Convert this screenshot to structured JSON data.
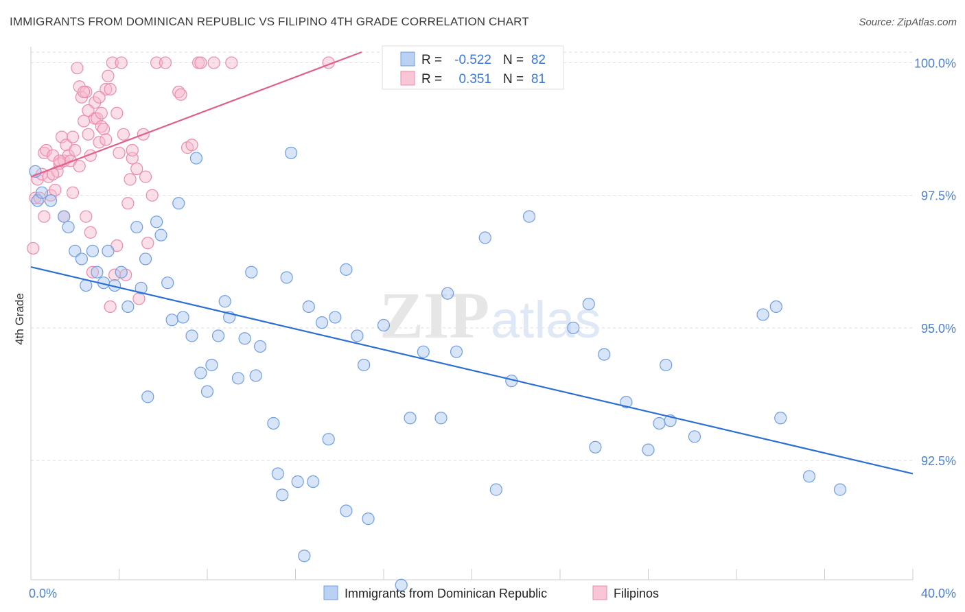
{
  "title": "IMMIGRANTS FROM DOMINICAN REPUBLIC VS FILIPINO 4TH GRADE CORRELATION CHART",
  "source": "Source: ZipAtlas.com",
  "colors": {
    "blue_fill": "#a9c6f0",
    "blue_stroke": "#6f9de0",
    "blue_line": "#2b6fd1",
    "pink_fill": "#f6b8cc",
    "pink_stroke": "#ec8aab",
    "pink_line": "#e0608a",
    "grid": "#dddddd",
    "axis_text": "#4a7fd0"
  },
  "legend": {
    "rows": [
      {
        "r_label": "R =",
        "r_value": "-0.522",
        "n_label": "N =",
        "n_value": "82",
        "series": "blue"
      },
      {
        "r_label": "R =",
        "r_value": "0.351",
        "n_label": "N =",
        "n_value": "81",
        "series": "pink"
      }
    ]
  },
  "chart_data": {
    "type": "scatter",
    "ylabel": "4th Grade",
    "xlim": [
      0,
      40
    ],
    "ylim": [
      90.25,
      100.2
    ],
    "y_ticks": [
      {
        "value": 100.0,
        "label": "100.0%"
      },
      {
        "value": 97.5,
        "label": "97.5%"
      },
      {
        "value": 95.0,
        "label": "95.0%"
      },
      {
        "value": 92.5,
        "label": "92.5%"
      }
    ],
    "x_tick_labels": [
      {
        "value": 0,
        "label": "0.0%"
      },
      {
        "value": 40,
        "label": "40.0%"
      }
    ],
    "x_minor_ticks": [
      0,
      4,
      8,
      12,
      16,
      20,
      24,
      28,
      32,
      36,
      40
    ],
    "watermark": "ZIPatlas",
    "series": [
      {
        "name": "Immigrants from Dominican Republic",
        "color": "blue",
        "trend": {
          "x0": 0,
          "y0": 96.15,
          "x1": 40,
          "y1": 92.25
        },
        "points": [
          [
            0.2,
            97.95
          ],
          [
            0.3,
            97.4
          ],
          [
            0.5,
            97.55
          ],
          [
            0.9,
            97.4
          ],
          [
            1.5,
            97.1
          ],
          [
            1.7,
            96.9
          ],
          [
            2.0,
            96.45
          ],
          [
            2.3,
            96.3
          ],
          [
            2.5,
            95.8
          ],
          [
            2.8,
            96.45
          ],
          [
            3.0,
            96.05
          ],
          [
            3.3,
            95.85
          ],
          [
            3.5,
            96.45
          ],
          [
            3.8,
            95.8
          ],
          [
            4.1,
            96.05
          ],
          [
            4.4,
            95.4
          ],
          [
            4.8,
            96.9
          ],
          [
            5.0,
            95.75
          ],
          [
            5.2,
            96.3
          ],
          [
            5.3,
            93.7
          ],
          [
            5.7,
            97.0
          ],
          [
            5.9,
            96.75
          ],
          [
            6.2,
            95.85
          ],
          [
            6.4,
            95.15
          ],
          [
            6.7,
            97.35
          ],
          [
            6.9,
            95.2
          ],
          [
            7.3,
            94.85
          ],
          [
            7.5,
            98.2
          ],
          [
            7.7,
            94.15
          ],
          [
            8.0,
            93.8
          ],
          [
            8.2,
            94.3
          ],
          [
            8.5,
            94.85
          ],
          [
            8.8,
            95.5
          ],
          [
            9.0,
            95.2
          ],
          [
            9.4,
            94.05
          ],
          [
            9.7,
            94.8
          ],
          [
            10.0,
            96.05
          ],
          [
            10.2,
            94.1
          ],
          [
            10.4,
            94.65
          ],
          [
            11.0,
            93.2
          ],
          [
            11.2,
            92.25
          ],
          [
            11.4,
            91.85
          ],
          [
            11.6,
            95.95
          ],
          [
            11.8,
            98.3
          ],
          [
            12.1,
            92.1
          ],
          [
            12.4,
            90.7
          ],
          [
            12.6,
            95.4
          ],
          [
            12.8,
            92.1
          ],
          [
            13.2,
            95.1
          ],
          [
            13.5,
            92.9
          ],
          [
            13.8,
            95.2
          ],
          [
            14.3,
            96.1
          ],
          [
            14.3,
            91.55
          ],
          [
            14.8,
            94.85
          ],
          [
            15.1,
            94.3
          ],
          [
            15.3,
            91.4
          ],
          [
            16.0,
            95.05
          ],
          [
            16.8,
            90.15
          ],
          [
            17.2,
            93.3
          ],
          [
            17.8,
            94.55
          ],
          [
            18.6,
            93.3
          ],
          [
            18.9,
            95.65
          ],
          [
            19.3,
            94.55
          ],
          [
            20.6,
            96.7
          ],
          [
            21.1,
            91.95
          ],
          [
            21.8,
            94.0
          ],
          [
            22.6,
            97.1
          ],
          [
            24.6,
            95.0
          ],
          [
            25.3,
            95.45
          ],
          [
            25.6,
            92.75
          ],
          [
            26.0,
            94.5
          ],
          [
            27.0,
            93.6
          ],
          [
            28.0,
            92.7
          ],
          [
            28.5,
            93.2
          ],
          [
            28.8,
            94.3
          ],
          [
            29.0,
            93.25
          ],
          [
            30.1,
            92.95
          ],
          [
            33.2,
            95.25
          ],
          [
            33.8,
            95.4
          ],
          [
            34.0,
            93.3
          ],
          [
            35.3,
            92.2
          ],
          [
            36.7,
            91.95
          ]
        ]
      },
      {
        "name": "Filipinos",
        "color": "pink",
        "trend": {
          "x0": 0,
          "y0": 97.85,
          "x1": 15,
          "y1": 100.2
        },
        "points": [
          [
            0.1,
            96.5
          ],
          [
            0.2,
            97.45
          ],
          [
            0.3,
            97.8
          ],
          [
            0.4,
            97.45
          ],
          [
            0.5,
            97.9
          ],
          [
            0.6,
            98.3
          ],
          [
            0.6,
            97.1
          ],
          [
            0.7,
            98.35
          ],
          [
            0.8,
            97.85
          ],
          [
            0.9,
            97.5
          ],
          [
            1.0,
            98.25
          ],
          [
            1.1,
            97.6
          ],
          [
            1.2,
            97.95
          ],
          [
            1.3,
            98.1
          ],
          [
            1.4,
            98.6
          ],
          [
            1.5,
            98.15
          ],
          [
            1.5,
            97.1
          ],
          [
            1.6,
            98.45
          ],
          [
            1.7,
            98.25
          ],
          [
            1.8,
            98.15
          ],
          [
            1.9,
            97.55
          ],
          [
            1.9,
            98.6
          ],
          [
            2.0,
            98.35
          ],
          [
            2.1,
            99.9
          ],
          [
            2.2,
            98.05
          ],
          [
            2.2,
            99.55
          ],
          [
            2.3,
            99.35
          ],
          [
            2.4,
            98.9
          ],
          [
            2.5,
            99.45
          ],
          [
            2.5,
            97.1
          ],
          [
            2.6,
            98.65
          ],
          [
            2.7,
            98.25
          ],
          [
            2.7,
            96.8
          ],
          [
            2.8,
            96.05
          ],
          [
            2.9,
            99.25
          ],
          [
            2.9,
            98.95
          ],
          [
            3.0,
            98.95
          ],
          [
            3.1,
            98.5
          ],
          [
            3.2,
            99.05
          ],
          [
            3.2,
            98.8
          ],
          [
            3.3,
            98.75
          ],
          [
            3.4,
            98.55
          ],
          [
            3.4,
            99.5
          ],
          [
            3.5,
            99.75
          ],
          [
            3.6,
            95.4
          ],
          [
            3.6,
            99.5
          ],
          [
            3.7,
            100.0
          ],
          [
            3.8,
            96.0
          ],
          [
            3.9,
            96.55
          ],
          [
            3.9,
            99.05
          ],
          [
            4.0,
            98.3
          ],
          [
            4.1,
            100.0
          ],
          [
            4.2,
            98.65
          ],
          [
            4.3,
            96.0
          ],
          [
            4.4,
            97.35
          ],
          [
            4.5,
            97.8
          ],
          [
            4.6,
            98.2
          ],
          [
            4.6,
            98.35
          ],
          [
            4.9,
            95.55
          ],
          [
            5.1,
            98.65
          ],
          [
            5.2,
            97.85
          ],
          [
            5.3,
            96.6
          ],
          [
            5.5,
            97.5
          ],
          [
            5.7,
            100.0
          ],
          [
            6.1,
            100.0
          ],
          [
            6.7,
            99.45
          ],
          [
            6.8,
            99.4
          ],
          [
            7.1,
            98.4
          ],
          [
            7.3,
            98.45
          ],
          [
            7.6,
            100.0
          ],
          [
            7.7,
            100.0
          ],
          [
            8.3,
            100.0
          ],
          [
            9.1,
            100.0
          ],
          [
            13.5,
            100.0
          ],
          [
            16.5,
            100.0
          ],
          [
            2.4,
            99.45
          ],
          [
            1.0,
            97.9
          ],
          [
            1.3,
            98.15
          ],
          [
            3.1,
            99.35
          ],
          [
            2.6,
            99.1
          ],
          [
            4.8,
            98.0
          ]
        ]
      }
    ]
  },
  "bottom_legend": [
    {
      "label": "Immigrants from Dominican Republic",
      "color": "blue"
    },
    {
      "label": "Filipinos",
      "color": "pink"
    }
  ]
}
